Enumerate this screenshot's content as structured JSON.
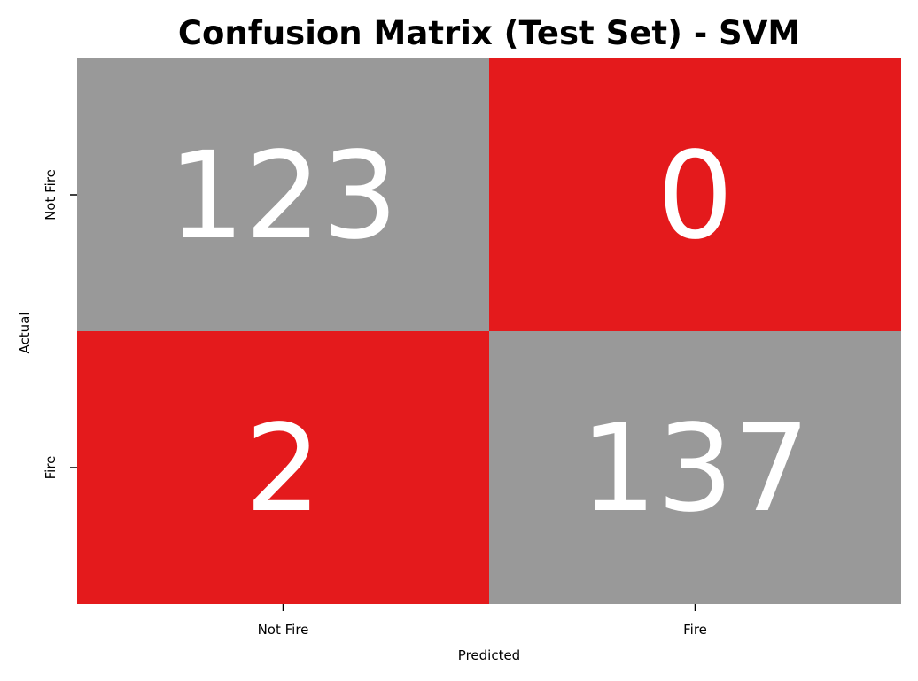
{
  "chart_data": {
    "type": "heatmap",
    "title": "Confusion Matrix (Test Set) - SVM",
    "xlabel": "Predicted",
    "ylabel": "Actual",
    "x_categories": [
      "Not Fire",
      "Fire"
    ],
    "y_categories": [
      "Not Fire",
      "Fire"
    ],
    "values": [
      [
        123,
        0
      ],
      [
        2,
        137
      ]
    ],
    "colors": {
      "correct": "#999999",
      "incorrect": "#e41a1c"
    },
    "colorbar": false,
    "grid": false
  }
}
